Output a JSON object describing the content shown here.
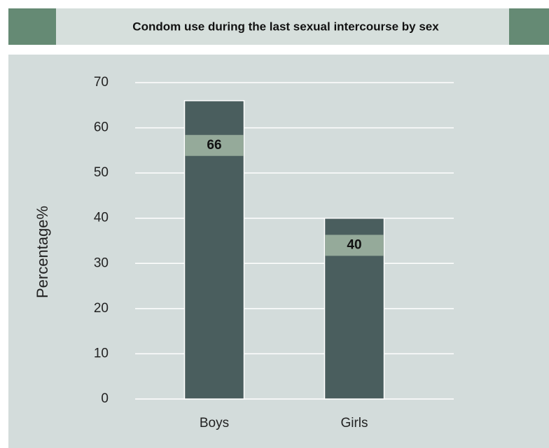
{
  "chart_data": {
    "type": "bar",
    "title": "Condom use during the last sexual intercourse by sex",
    "y_label": "Percentage%",
    "categories": [
      "Boys",
      "Girls"
    ],
    "values": [
      66,
      40
    ],
    "color": "#4a5e5e",
    "label_color": "#95aa9a",
    "ylim": [
      0,
      70
    ],
    "yticks": [
      0,
      10,
      20,
      30,
      40,
      50,
      60,
      70
    ],
    "grid": true
  }
}
